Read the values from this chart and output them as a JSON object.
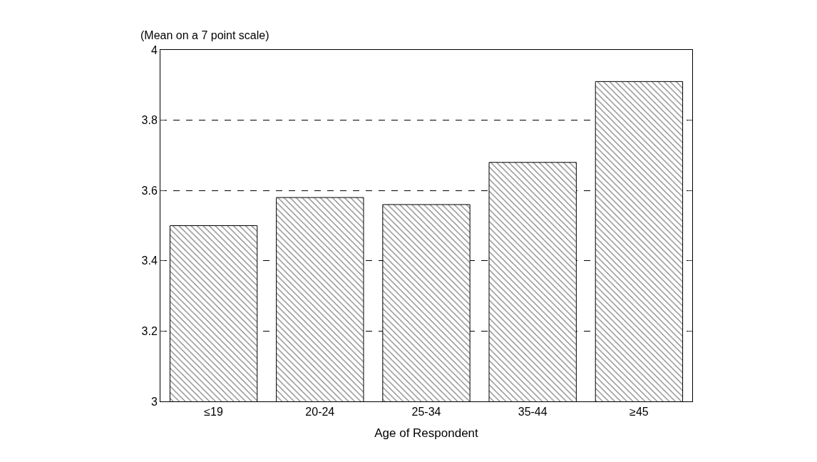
{
  "chart_data": {
    "type": "bar",
    "ylabel": "(Mean on a 7 point scale)",
    "xlabel": "Age of Respondent",
    "categories": [
      "≤19",
      "20-24",
      "25-34",
      "35-44",
      "≥45"
    ],
    "values": [
      3.5,
      3.58,
      3.56,
      3.68,
      3.91
    ],
    "color": "#000000",
    "ylim": [
      3,
      4
    ],
    "yticks": [
      3,
      3.2,
      3.4,
      3.6,
      3.8,
      4
    ],
    "grid": "y",
    "line_style": "dashed",
    "legend": false
  }
}
